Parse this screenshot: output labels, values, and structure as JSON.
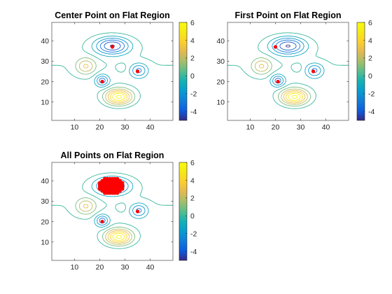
{
  "chart_data": [
    {
      "type": "contour",
      "title": "Center Point on Flat Region",
      "xlim": [
        1,
        49
      ],
      "ylim": [
        1,
        49
      ],
      "xticks": [
        10,
        20,
        30,
        40
      ],
      "yticks": [
        10,
        20,
        30,
        40
      ],
      "contour_levels": [
        -5,
        -4,
        -3,
        -2,
        -1,
        0,
        1,
        2,
        3,
        4,
        5,
        6
      ],
      "colorbar": {
        "range": [
          -5,
          6
        ],
        "ticks": [
          -4,
          -2,
          0,
          2,
          4,
          6
        ]
      },
      "markers": [
        [
          25,
          37
        ],
        [
          21,
          20
        ],
        [
          35,
          25
        ]
      ],
      "marker_color": "#ff0000",
      "colormap": "parula"
    },
    {
      "type": "contour",
      "title": "First Point on Flat Region",
      "xlim": [
        1,
        49
      ],
      "ylim": [
        1,
        49
      ],
      "xticks": [
        10,
        20,
        30,
        40
      ],
      "yticks": [
        10,
        20,
        30,
        40
      ],
      "contour_levels": [
        -5,
        -4,
        -3,
        -2,
        -1,
        0,
        1,
        2,
        3,
        4,
        5,
        6
      ],
      "colorbar": {
        "range": [
          -5,
          6
        ],
        "ticks": [
          -4,
          -2,
          0,
          2,
          4,
          6
        ]
      },
      "markers": [
        [
          20,
          37
        ],
        [
          21,
          20
        ],
        [
          35,
          25
        ]
      ],
      "marker_color": "#ff0000",
      "colormap": "parula"
    },
    {
      "type": "contour",
      "title": "All Points on Flat Region",
      "xlim": [
        1,
        49
      ],
      "ylim": [
        1,
        49
      ],
      "xticks": [
        10,
        20,
        30,
        40
      ],
      "yticks": [
        10,
        20,
        30,
        40
      ],
      "contour_levels": [
        -5,
        -4,
        -3,
        -2,
        -1,
        0,
        1,
        2,
        3,
        4,
        5,
        6
      ],
      "colorbar": {
        "range": [
          -5,
          6
        ],
        "ticks": [
          -4,
          -2,
          0,
          2,
          4,
          6
        ]
      },
      "marker_region": {
        "x_range": [
          20,
          29
        ],
        "y_range": [
          34,
          41
        ]
      },
      "markers": [
        [
          21,
          20
        ],
        [
          35,
          25
        ]
      ],
      "marker_color": "#ff0000",
      "colormap": "parula"
    }
  ]
}
